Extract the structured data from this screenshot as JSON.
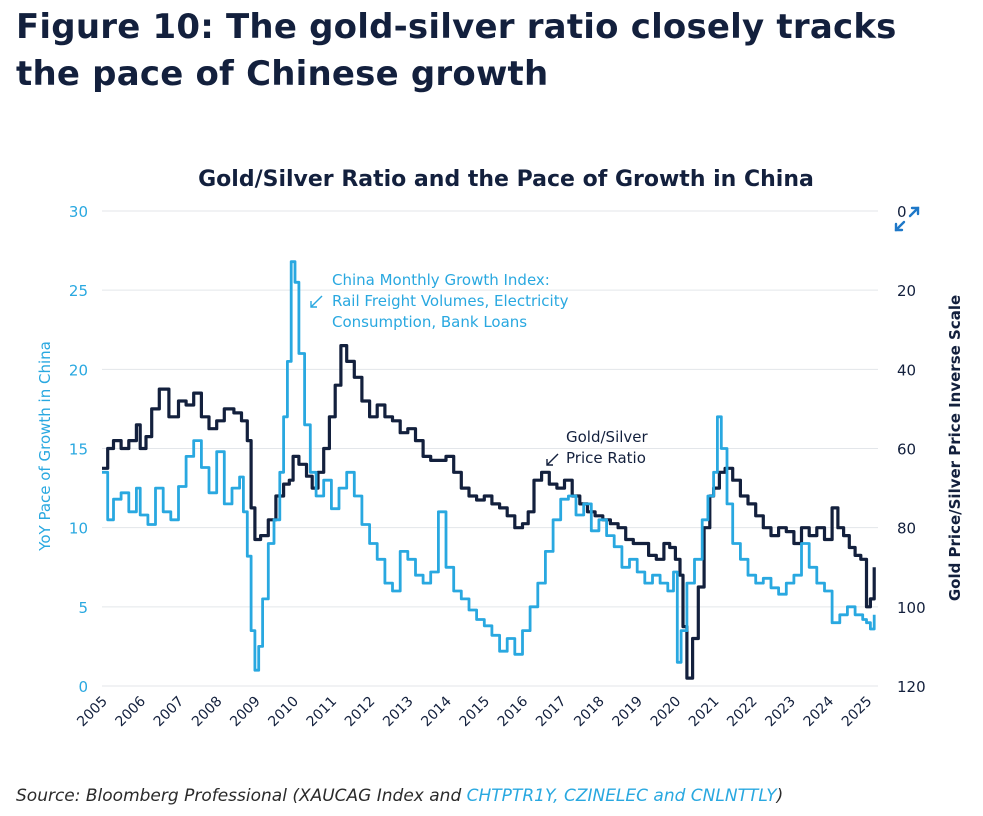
{
  "figure_title": "Figure 10: The gold-silver ratio closely tracks the pace of Chinese growth",
  "source": {
    "prefix": "Source: Bloomberg Professional (XAUCAG Index and ",
    "highlight": "CHTPTR1Y, CZINELEC and CNLNTTLY",
    "suffix": ")"
  },
  "expand_icon": "expand-arrows-icon",
  "colors": {
    "growth": "#29a8e0",
    "ratio": "#13203d",
    "grid": "#e3e6ea",
    "text": "#13203d"
  },
  "chart_data": {
    "type": "line",
    "title": "Gold/Silver Ratio and the Pace of Growth in China",
    "ylabel_left": "YoY Pace of Growth in China",
    "ylabel_right": "Gold Price/Silver Price Inverse Scale",
    "ylim_left": [
      0,
      30
    ],
    "yticks_left": [
      "0",
      "5",
      "10",
      "15",
      "20",
      "25",
      "30"
    ],
    "ylim_right_inverted": [
      0,
      120
    ],
    "yticks_right": [
      "0",
      "20",
      "40",
      "60",
      "80",
      "100",
      "120"
    ],
    "xlim": [
      2005,
      2025.3
    ],
    "xticks": [
      "2005",
      "2006",
      "2007",
      "2008",
      "2009",
      "2010",
      "2011",
      "2012",
      "2013",
      "2014",
      "2015",
      "2016",
      "2017",
      "2018",
      "2019",
      "2020",
      "2021",
      "2022",
      "2023",
      "2024",
      "2025"
    ],
    "grid": "horizontal",
    "annotations": [
      {
        "series": "growth",
        "lines": [
          "China Monthly Growth Index:",
          "Rail Freight Volumes, Electricity",
          "Consumption, Bank Loans"
        ]
      },
      {
        "series": "ratio",
        "lines": [
          "Gold/Silver",
          "Price Ratio"
        ]
      }
    ],
    "series": [
      {
        "name": "China Monthly Growth Index: Rail Freight Volumes, Electricity Consumption, Bank Loans",
        "axis": "left",
        "x": [
          2005.0,
          2005.15,
          2005.3,
          2005.5,
          2005.7,
          2005.9,
          2006.0,
          2006.2,
          2006.4,
          2006.6,
          2006.8,
          2007.0,
          2007.2,
          2007.4,
          2007.6,
          2007.8,
          2008.0,
          2008.2,
          2008.4,
          2008.6,
          2008.7,
          2008.8,
          2008.9,
          2009.0,
          2009.1,
          2009.2,
          2009.35,
          2009.5,
          2009.65,
          2009.75,
          2009.85,
          2009.95,
          2010.05,
          2010.15,
          2010.3,
          2010.45,
          2010.6,
          2010.8,
          2011.0,
          2011.2,
          2011.4,
          2011.6,
          2011.8,
          2012.0,
          2012.2,
          2012.4,
          2012.6,
          2012.8,
          2013.0,
          2013.2,
          2013.4,
          2013.6,
          2013.8,
          2014.0,
          2014.2,
          2014.4,
          2014.6,
          2014.8,
          2015.0,
          2015.2,
          2015.4,
          2015.6,
          2015.8,
          2016.0,
          2016.2,
          2016.4,
          2016.6,
          2016.8,
          2017.0,
          2017.2,
          2017.4,
          2017.6,
          2017.8,
          2018.0,
          2018.2,
          2018.4,
          2018.6,
          2018.8,
          2019.0,
          2019.2,
          2019.4,
          2019.6,
          2019.8,
          2019.95,
          2020.05,
          2020.15,
          2020.3,
          2020.5,
          2020.7,
          2020.85,
          2021.0,
          2021.1,
          2021.2,
          2021.35,
          2021.5,
          2021.7,
          2021.9,
          2022.1,
          2022.3,
          2022.5,
          2022.7,
          2022.9,
          2023.1,
          2023.3,
          2023.5,
          2023.7,
          2023.9,
          2024.1,
          2024.3,
          2024.5,
          2024.7,
          2024.9,
          2025.0,
          2025.1,
          2025.2
        ],
        "values": [
          13.5,
          10.5,
          11.8,
          12.2,
          11.0,
          12.5,
          10.8,
          10.2,
          12.5,
          11.0,
          10.5,
          12.6,
          14.5,
          15.5,
          13.8,
          12.2,
          14.8,
          11.5,
          12.5,
          13.2,
          11.0,
          8.2,
          3.5,
          1.0,
          2.5,
          5.5,
          9.0,
          10.5,
          13.5,
          17.0,
          20.5,
          26.8,
          25.5,
          21.0,
          16.5,
          13.5,
          12.0,
          13.0,
          11.2,
          12.5,
          13.5,
          12.0,
          10.2,
          9.0,
          8.0,
          6.5,
          6.0,
          8.5,
          8.0,
          7.0,
          6.5,
          7.2,
          11.0,
          7.5,
          6.0,
          5.5,
          4.8,
          4.2,
          3.8,
          3.2,
          2.2,
          3.0,
          2.0,
          3.5,
          5.0,
          6.5,
          8.5,
          10.5,
          11.8,
          12.0,
          10.8,
          11.5,
          9.8,
          10.5,
          9.5,
          8.8,
          7.5,
          8.0,
          7.2,
          6.5,
          7.0,
          6.5,
          6.0,
          7.2,
          1.5,
          3.5,
          6.5,
          8.0,
          10.5,
          12.0,
          13.5,
          17.0,
          15.0,
          11.5,
          9.0,
          8.0,
          7.0,
          6.5,
          6.8,
          6.2,
          5.8,
          6.5,
          7.0,
          9.0,
          7.5,
          6.5,
          6.0,
          4.0,
          4.5,
          5.0,
          4.5,
          4.2,
          4.0,
          3.6,
          4.5
        ]
      },
      {
        "name": "Gold/Silver Price Ratio",
        "axis": "right",
        "x": [
          2005.0,
          2005.15,
          2005.3,
          2005.5,
          2005.7,
          2005.9,
          2006.0,
          2006.15,
          2006.3,
          2006.5,
          2006.75,
          2007.0,
          2007.2,
          2007.4,
          2007.6,
          2007.8,
          2008.0,
          2008.2,
          2008.45,
          2008.65,
          2008.8,
          2008.9,
          2009.0,
          2009.15,
          2009.35,
          2009.55,
          2009.75,
          2009.9,
          2010.0,
          2010.15,
          2010.35,
          2010.5,
          2010.65,
          2010.8,
          2010.95,
          2011.1,
          2011.25,
          2011.4,
          2011.6,
          2011.8,
          2012.0,
          2012.2,
          2012.4,
          2012.6,
          2012.8,
          2013.0,
          2013.2,
          2013.4,
          2013.6,
          2013.8,
          2014.0,
          2014.2,
          2014.4,
          2014.6,
          2014.8,
          2015.0,
          2015.2,
          2015.4,
          2015.6,
          2015.8,
          2016.0,
          2016.15,
          2016.3,
          2016.5,
          2016.7,
          2016.9,
          2017.1,
          2017.3,
          2017.5,
          2017.7,
          2017.9,
          2018.1,
          2018.3,
          2018.5,
          2018.7,
          2018.9,
          2019.1,
          2019.3,
          2019.5,
          2019.7,
          2019.85,
          2020.0,
          2020.12,
          2020.2,
          2020.3,
          2020.45,
          2020.6,
          2020.75,
          2020.9,
          2021.0,
          2021.15,
          2021.3,
          2021.5,
          2021.7,
          2021.9,
          2022.1,
          2022.3,
          2022.5,
          2022.7,
          2022.9,
          2023.1,
          2023.3,
          2023.5,
          2023.7,
          2023.9,
          2024.1,
          2024.25,
          2024.4,
          2024.55,
          2024.7,
          2024.85,
          2025.0,
          2025.1,
          2025.2
        ],
        "values": [
          65,
          60,
          58,
          60,
          58,
          54,
          60,
          57,
          50,
          45,
          52,
          48,
          49,
          46,
          52,
          55,
          53,
          50,
          51,
          53,
          58,
          75,
          83,
          82,
          78,
          72,
          69,
          68,
          62,
          64,
          67,
          70,
          66,
          60,
          52,
          44,
          34,
          38,
          42,
          48,
          52,
          49,
          52,
          53,
          56,
          55,
          58,
          62,
          63,
          63,
          62,
          66,
          70,
          72,
          73,
          72,
          74,
          75,
          77,
          80,
          79,
          76,
          68,
          66,
          69,
          70,
          68,
          72,
          74,
          76,
          77,
          78,
          79,
          80,
          83,
          84,
          84,
          87,
          88,
          84,
          85,
          88,
          92,
          105,
          118,
          108,
          95,
          80,
          72,
          70,
          66,
          65,
          68,
          72,
          74,
          77,
          80,
          82,
          80,
          81,
          84,
          80,
          82,
          80,
          83,
          75,
          80,
          82,
          85,
          87,
          88,
          100,
          98,
          90
        ]
      }
    ]
  }
}
